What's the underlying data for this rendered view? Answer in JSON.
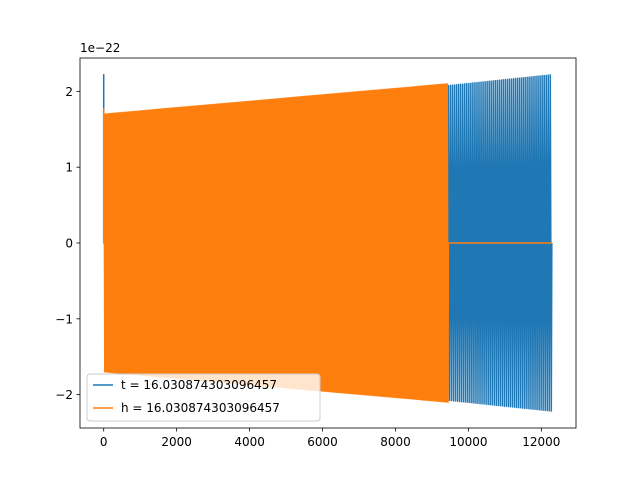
{
  "chart_data": {
    "type": "line",
    "title": "",
    "xlabel": "",
    "ylabel": "",
    "offset_text": "1e−22",
    "xlim": [
      -650,
      12950
    ],
    "ylim": [
      -2.44,
      2.44
    ],
    "x_ticks": [
      0,
      2000,
      4000,
      6000,
      8000,
      10000,
      12000
    ],
    "x_tick_labels": [
      "0",
      "2000",
      "4000",
      "6000",
      "8000",
      "10000",
      "12000"
    ],
    "y_ticks": [
      -2,
      -1,
      0,
      1,
      2
    ],
    "y_tick_labels": [
      "−2",
      "−1",
      "0",
      "1",
      "2"
    ],
    "grid": false,
    "legend": "lower-left",
    "series": [
      {
        "name": "t = 16.030874303096457",
        "color": "#1f77b4",
        "points": 12288,
        "x_range": [
          0,
          12287
        ],
        "amplitude": {
          "start": 1.6,
          "end": 2.22
        },
        "spike": {
          "x": 0,
          "value": 2.22
        },
        "oscillation_cycles": 220
      },
      {
        "name": "h = 16.030874303096457",
        "color": "#ff7f0e",
        "points": 12288,
        "x_range": [
          0,
          12287
        ],
        "active_until": 9450,
        "amplitude": {
          "start": 1.7,
          "end": 2.22
        },
        "spike": {
          "x": 0,
          "value": 1.77
        },
        "oscillation_cycles": 240
      }
    ]
  }
}
